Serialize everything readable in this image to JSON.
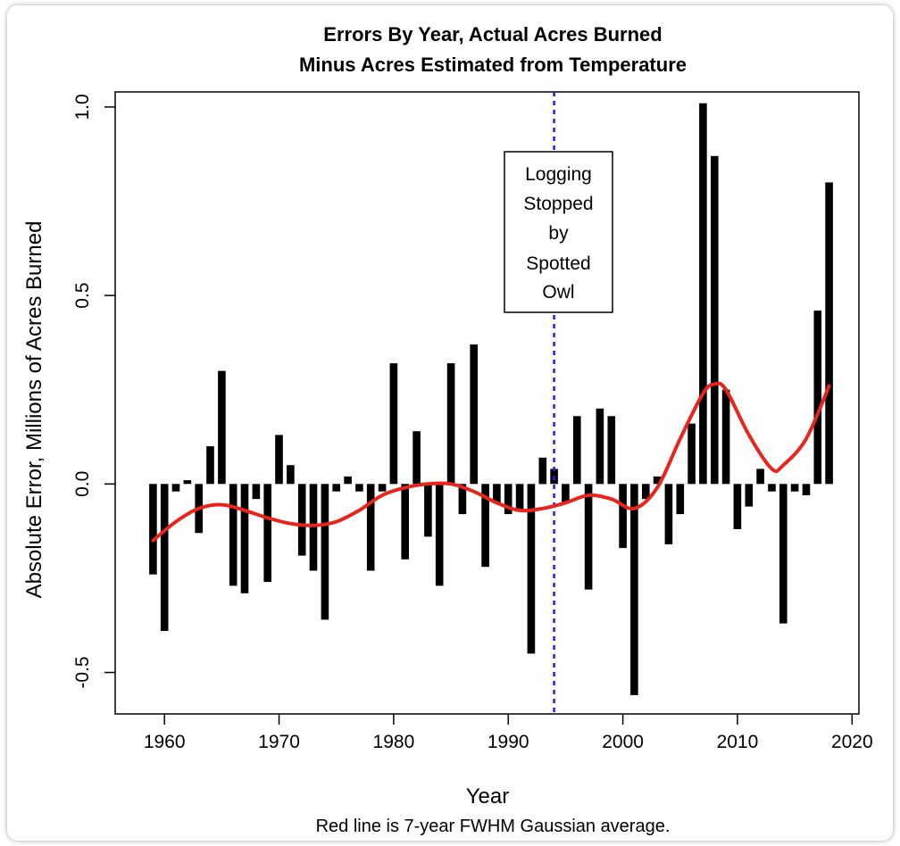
{
  "chart_data": {
    "type": "bar",
    "title": "Errors By Year, Actual Acres Burned",
    "subtitle": "Minus Acres Estimated from Temperature",
    "xlabel": "Year",
    "ylabel": "Absolute Error, Millions of Acres Burned",
    "caption": "Red line is 7-year FWHM Gaussian average.",
    "xlim": [
      1955.7,
      2020.6
    ],
    "ylim": [
      -0.61,
      1.04
    ],
    "xticks": [
      1960,
      1970,
      1980,
      1990,
      2000,
      2010,
      2020
    ],
    "yticks": [
      -0.5,
      0.0,
      0.5,
      1.0
    ],
    "ytick_labels": [
      "-0.5",
      "0.0",
      "0.5",
      "1.0"
    ],
    "grid": false,
    "bar_color": "#000000",
    "smooth_color": "#e8241c",
    "vline_color": "#2020ee",
    "x": [
      1959,
      1960,
      1961,
      1962,
      1963,
      1964,
      1965,
      1966,
      1967,
      1968,
      1969,
      1970,
      1971,
      1972,
      1973,
      1974,
      1975,
      1976,
      1977,
      1978,
      1979,
      1980,
      1981,
      1982,
      1983,
      1984,
      1985,
      1986,
      1987,
      1988,
      1989,
      1990,
      1991,
      1992,
      1993,
      1994,
      1995,
      1996,
      1997,
      1998,
      1999,
      2000,
      2001,
      2002,
      2003,
      2004,
      2005,
      2006,
      2007,
      2008,
      2009,
      2010,
      2011,
      2012,
      2013,
      2014,
      2015,
      2016,
      2017,
      2018
    ],
    "values": [
      -0.24,
      -0.39,
      -0.02,
      0.01,
      -0.13,
      0.1,
      0.3,
      -0.27,
      -0.29,
      -0.04,
      -0.26,
      0.13,
      0.05,
      -0.19,
      -0.23,
      -0.36,
      -0.02,
      0.02,
      -0.02,
      -0.23,
      -0.02,
      0.32,
      -0.2,
      0.14,
      -0.14,
      -0.27,
      0.32,
      -0.08,
      0.37,
      -0.22,
      -0.05,
      -0.08,
      -0.07,
      -0.45,
      0.07,
      0.04,
      -0.05,
      0.18,
      -0.28,
      0.2,
      0.18,
      -0.17,
      -0.56,
      -0.04,
      0.02,
      -0.16,
      -0.08,
      0.16,
      1.01,
      0.87,
      0.25,
      -0.12,
      -0.06,
      0.04,
      -0.02,
      -0.37,
      -0.02,
      -0.03,
      0.46,
      0.8
    ],
    "smooth_line": {
      "x": [
        1959,
        1961,
        1963,
        1965,
        1967,
        1969,
        1971,
        1973,
        1975,
        1977,
        1979,
        1981,
        1983,
        1985,
        1987,
        1989,
        1991,
        1993,
        1995,
        1997,
        1999,
        2001,
        2003,
        2005,
        2007,
        2008,
        2009,
        2011,
        2013,
        2014,
        2016,
        2018
      ],
      "y": [
        -0.15,
        -0.1,
        -0.065,
        -0.055,
        -0.07,
        -0.09,
        -0.105,
        -0.11,
        -0.1,
        -0.07,
        -0.03,
        -0.01,
        0.0,
        0.0,
        -0.02,
        -0.05,
        -0.07,
        -0.065,
        -0.05,
        -0.03,
        -0.04,
        -0.065,
        -0.01,
        0.12,
        0.24,
        0.265,
        0.25,
        0.13,
        0.04,
        0.05,
        0.12,
        0.26
      ]
    },
    "vertical_line": {
      "x": 1994,
      "style": "dotted"
    },
    "annotation": {
      "lines": [
        "Logging",
        "Stopped",
        "by",
        "Spotted",
        "Owl"
      ]
    }
  }
}
